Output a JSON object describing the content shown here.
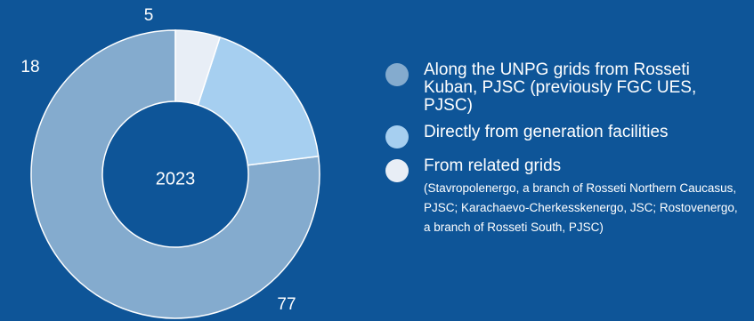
{
  "chart_data": {
    "type": "pie",
    "variant": "donut",
    "center_label": "2023",
    "series": [
      {
        "name": "Along the UNPG grids from Rosseti Kuban, PJSC (previously FGC UES, PJSC)",
        "value": 77,
        "label": "77",
        "color": "#84abce"
      },
      {
        "name": "Directly from generation facilities",
        "value": 18,
        "label": "18",
        "color": "#a6cff0"
      },
      {
        "name": "From related grids",
        "value": 5,
        "label": "5",
        "color": "#e8eef6"
      }
    ],
    "legend_notes": [
      "(Stavropolenergo, a branch of Rosseti Northern Caucasus, PJSC; Karachaevo-Cherkesskenergo, JSC; Rostovenergo, a branch of Rosseti South, PJSC)",
      "",
      ""
    ],
    "legend_placement": "right",
    "colors": {
      "background": "#0e5598",
      "text": "#ffffff"
    }
  }
}
